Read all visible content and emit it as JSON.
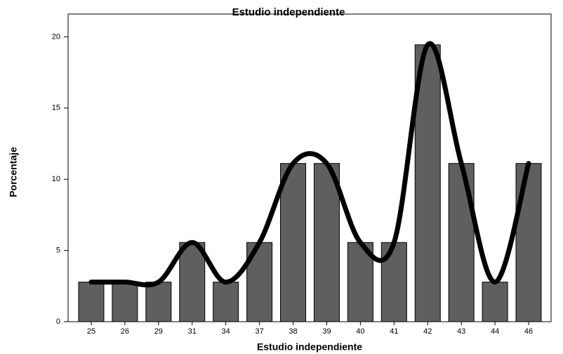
{
  "chart_data": {
    "type": "bar",
    "title": "Estudio independiente",
    "x_label": "Estudio independiente",
    "y_label": "Porcentaje",
    "categories": [
      "25",
      "26",
      "29",
      "31",
      "34",
      "37",
      "38",
      "39",
      "40",
      "41",
      "42",
      "43",
      "44",
      "46"
    ],
    "values": [
      2.78,
      2.78,
      2.78,
      5.56,
      2.78,
      5.56,
      11.11,
      11.11,
      5.56,
      5.56,
      19.44,
      11.11,
      2.78,
      11.11
    ],
    "color": "#5f5f5f",
    "curve_color": "#000000",
    "ylim": [
      0,
      21.6
    ],
    "yticks": [
      0,
      5,
      10,
      15,
      20
    ],
    "grid": false
  }
}
